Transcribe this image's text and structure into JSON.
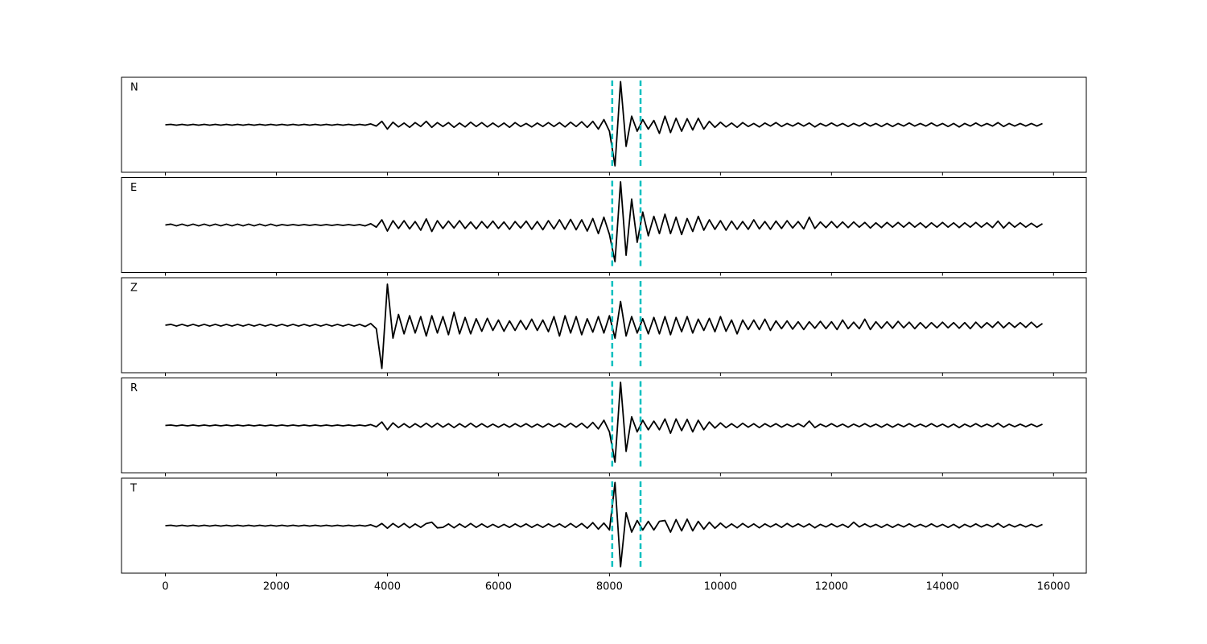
{
  "chart_data": {
    "type": "line",
    "subplots": true,
    "x": [
      0,
      100,
      200,
      300,
      400,
      500,
      600,
      700,
      800,
      900,
      1000,
      1100,
      1200,
      1300,
      1400,
      1500,
      1600,
      1700,
      1800,
      1900,
      2000,
      2100,
      2200,
      2300,
      2400,
      2500,
      2600,
      2700,
      2800,
      2900,
      3000,
      3100,
      3200,
      3300,
      3400,
      3500,
      3600,
      3700,
      3800,
      3900,
      4000,
      4100,
      4200,
      4300,
      4400,
      4500,
      4600,
      4700,
      4800,
      4900,
      5000,
      5100,
      5200,
      5300,
      5400,
      5500,
      5600,
      5700,
      5800,
      5900,
      6000,
      6100,
      6200,
      6300,
      6400,
      6500,
      6600,
      6700,
      6800,
      6900,
      7000,
      7100,
      7200,
      7300,
      7400,
      7500,
      7600,
      7700,
      7800,
      7900,
      8000,
      8100,
      8200,
      8300,
      8400,
      8500,
      8600,
      8700,
      8800,
      8900,
      9000,
      9100,
      9200,
      9300,
      9400,
      9500,
      9600,
      9700,
      9800,
      9900,
      10000,
      10100,
      10200,
      10300,
      10400,
      10500,
      10600,
      10700,
      10800,
      10900,
      11000,
      11100,
      11200,
      11300,
      11400,
      11500,
      11600,
      11700,
      11800,
      11900,
      12000,
      12100,
      12200,
      12300,
      12400,
      12500,
      12600,
      12700,
      12800,
      12900,
      13000,
      13100,
      13200,
      13300,
      13400,
      13500,
      13600,
      13700,
      13800,
      13900,
      14000,
      14100,
      14200,
      14300,
      14400,
      14500,
      14600,
      14700,
      14800,
      14900,
      15000,
      15100,
      15200,
      15300,
      15400,
      15500,
      15600,
      15700,
      15800
    ],
    "series": [
      {
        "name": "N",
        "color": "#000000",
        "values": [
          0,
          0.01,
          -0.01,
          0.01,
          -0.01,
          0.01,
          -0.01,
          0.01,
          -0.01,
          0.01,
          -0.01,
          0.01,
          -0.01,
          0.01,
          -0.01,
          0.01,
          -0.01,
          0.01,
          -0.01,
          0.01,
          -0.01,
          0.01,
          -0.01,
          0.01,
          -0.01,
          0.01,
          -0.01,
          0.01,
          -0.01,
          0.01,
          -0.01,
          0.01,
          -0.01,
          0.01,
          -0.01,
          0.01,
          -0.01,
          0.02,
          -0.03,
          0.08,
          -0.1,
          0.06,
          -0.05,
          0.04,
          -0.06,
          0.05,
          -0.04,
          0.08,
          -0.06,
          0.05,
          -0.04,
          0.05,
          -0.06,
          0.04,
          -0.05,
          0.06,
          -0.04,
          0.05,
          -0.05,
          0.04,
          -0.05,
          0.04,
          -0.06,
          0.05,
          -0.04,
          0.03,
          -0.05,
          0.04,
          -0.04,
          0.05,
          -0.04,
          0.05,
          -0.05,
          0.06,
          -0.04,
          0.07,
          -0.06,
          0.08,
          -0.1,
          0.12,
          -0.15,
          -0.95,
          1.0,
          -0.5,
          0.2,
          -0.15,
          0.12,
          -0.1,
          0.1,
          -0.2,
          0.2,
          -0.18,
          0.15,
          -0.15,
          0.14,
          -0.12,
          0.15,
          -0.1,
          0.08,
          -0.06,
          0.06,
          -0.05,
          0.04,
          -0.06,
          0.05,
          -0.04,
          0.03,
          -0.05,
          0.04,
          -0.03,
          0.05,
          -0.04,
          0.03,
          -0.03,
          0.04,
          -0.03,
          0.04,
          -0.05,
          0.03,
          -0.03,
          0.04,
          -0.03,
          0.03,
          -0.04,
          0.03,
          -0.03,
          0.04,
          -0.03,
          0.03,
          -0.04,
          0.03,
          -0.04,
          0.03,
          -0.03,
          0.04,
          -0.03,
          0.03,
          -0.03,
          0.04,
          -0.03,
          0.03,
          -0.04,
          0.03,
          -0.05,
          0.03,
          -0.03,
          0.04,
          -0.03,
          0.03,
          -0.03,
          0.05,
          -0.04,
          0.03,
          -0.03,
          0.03,
          -0.03,
          0.03,
          -0.03,
          0.03
        ]
      },
      {
        "name": "E",
        "color": "#000000",
        "values": [
          0,
          0.02,
          -0.02,
          0.02,
          -0.02,
          0.02,
          -0.02,
          0.02,
          -0.02,
          0.02,
          -0.02,
          0.02,
          -0.02,
          0.02,
          -0.02,
          0.02,
          -0.02,
          0.02,
          -0.02,
          0.02,
          -0.02,
          0.01,
          -0.01,
          0.01,
          -0.01,
          0.01,
          -0.01,
          0.01,
          -0.01,
          0.01,
          -0.01,
          0.01,
          -0.01,
          0.01,
          -0.01,
          0.01,
          -0.02,
          0.03,
          -0.05,
          0.12,
          -0.14,
          0.1,
          -0.08,
          0.1,
          -0.09,
          0.08,
          -0.12,
          0.14,
          -0.15,
          0.1,
          -0.08,
          0.09,
          -0.07,
          0.1,
          -0.08,
          0.07,
          -0.09,
          0.08,
          -0.07,
          0.09,
          -0.08,
          0.07,
          -0.1,
          0.08,
          -0.07,
          0.09,
          -0.1,
          0.08,
          -0.11,
          0.1,
          -0.09,
          0.12,
          -0.1,
          0.13,
          -0.11,
          0.12,
          -0.14,
          0.15,
          -0.2,
          0.18,
          -0.22,
          -0.85,
          1.0,
          -0.7,
          0.6,
          -0.4,
          0.3,
          -0.25,
          0.2,
          -0.2,
          0.25,
          -0.2,
          0.18,
          -0.22,
          0.15,
          -0.15,
          0.2,
          -0.12,
          0.12,
          -0.1,
          0.1,
          -0.12,
          0.09,
          -0.1,
          0.08,
          -0.1,
          0.12,
          -0.09,
          0.08,
          -0.1,
          0.09,
          -0.08,
          0.1,
          -0.07,
          0.08,
          -0.09,
          0.18,
          -0.08,
          0.07,
          -0.06,
          0.08,
          -0.06,
          0.07,
          -0.06,
          0.07,
          -0.05,
          0.06,
          -0.07,
          0.05,
          -0.06,
          0.06,
          -0.05,
          0.06,
          -0.05,
          0.06,
          -0.05,
          0.05,
          -0.06,
          0.05,
          -0.05,
          0.06,
          -0.05,
          0.05,
          -0.06,
          0.05,
          -0.05,
          0.06,
          -0.05,
          0.05,
          -0.06,
          0.09,
          -0.07,
          0.06,
          -0.05,
          0.05,
          -0.05,
          0.04,
          -0.05,
          0.03
        ]
      },
      {
        "name": "Z",
        "color": "#000000",
        "values": [
          0,
          0.02,
          -0.02,
          0.02,
          -0.02,
          0.02,
          -0.02,
          0.02,
          -0.02,
          0.02,
          -0.02,
          0.02,
          -0.02,
          0.02,
          -0.02,
          0.02,
          -0.02,
          0.02,
          -0.02,
          0.02,
          -0.02,
          0.02,
          -0.02,
          0.02,
          -0.02,
          0.02,
          -0.02,
          0.02,
          -0.02,
          0.02,
          -0.02,
          0.02,
          -0.02,
          0.02,
          -0.02,
          0.02,
          -0.03,
          0.04,
          -0.08,
          -1.0,
          0.95,
          -0.3,
          0.25,
          -0.2,
          0.22,
          -0.18,
          0.2,
          -0.25,
          0.22,
          -0.18,
          0.2,
          -0.22,
          0.3,
          -0.2,
          0.18,
          -0.2,
          0.15,
          -0.14,
          0.16,
          -0.12,
          0.12,
          -0.14,
          0.1,
          -0.12,
          0.11,
          -0.1,
          0.14,
          -0.12,
          0.12,
          -0.15,
          0.2,
          -0.25,
          0.22,
          -0.18,
          0.2,
          -0.22,
          0.15,
          -0.16,
          0.2,
          -0.18,
          0.22,
          -0.3,
          0.55,
          -0.25,
          0.2,
          -0.18,
          0.15,
          -0.2,
          0.18,
          -0.2,
          0.2,
          -0.22,
          0.18,
          -0.15,
          0.2,
          -0.18,
          0.14,
          -0.12,
          0.16,
          -0.15,
          0.2,
          -0.14,
          0.12,
          -0.2,
          0.12,
          -0.1,
          0.12,
          -0.1,
          0.14,
          -0.12,
          0.1,
          -0.08,
          0.1,
          -0.09,
          0.08,
          -0.1,
          0.08,
          -0.07,
          0.09,
          -0.08,
          0.08,
          -0.1,
          0.12,
          -0.08,
          0.07,
          -0.08,
          0.14,
          -0.1,
          0.08,
          -0.07,
          0.08,
          -0.07,
          0.09,
          -0.06,
          0.07,
          -0.08,
          0.06,
          -0.07,
          0.06,
          -0.06,
          0.07,
          -0.06,
          0.06,
          -0.07,
          0.06,
          -0.08,
          0.07,
          -0.06,
          0.06,
          -0.05,
          0.08,
          -0.06,
          0.06,
          -0.05,
          0.06,
          -0.05,
          0.07,
          -0.05,
          0.04
        ]
      },
      {
        "name": "R",
        "color": "#000000",
        "values": [
          0,
          0.01,
          -0.01,
          0.01,
          -0.01,
          0.01,
          -0.01,
          0.01,
          -0.01,
          0.01,
          -0.01,
          0.01,
          -0.01,
          0.01,
          -0.01,
          0.01,
          -0.01,
          0.01,
          -0.01,
          0.01,
          -0.01,
          0.01,
          -0.01,
          0.01,
          -0.01,
          0.01,
          -0.01,
          0.01,
          -0.01,
          0.01,
          -0.01,
          0.01,
          -0.01,
          0.01,
          -0.01,
          0.01,
          -0.01,
          0.02,
          -0.03,
          0.08,
          -0.1,
          0.06,
          -0.05,
          0.04,
          -0.05,
          0.04,
          -0.04,
          0.05,
          -0.04,
          0.05,
          -0.04,
          0.04,
          -0.05,
          0.04,
          -0.04,
          0.05,
          -0.04,
          0.04,
          -0.04,
          0.03,
          -0.04,
          0.03,
          -0.04,
          0.04,
          -0.03,
          0.04,
          -0.04,
          0.03,
          -0.04,
          0.04,
          -0.03,
          0.04,
          -0.04,
          0.05,
          -0.04,
          0.05,
          -0.06,
          0.07,
          -0.08,
          0.12,
          -0.15,
          -0.85,
          1.0,
          -0.6,
          0.2,
          -0.15,
          0.12,
          -0.1,
          0.1,
          -0.1,
          0.15,
          -0.18,
          0.15,
          -0.12,
          0.14,
          -0.15,
          0.12,
          -0.1,
          0.08,
          -0.06,
          0.06,
          -0.05,
          0.04,
          -0.05,
          0.05,
          -0.04,
          0.04,
          -0.05,
          0.04,
          -0.03,
          0.04,
          -0.04,
          0.03,
          -0.03,
          0.04,
          -0.03,
          0.1,
          -0.05,
          0.03,
          -0.03,
          0.04,
          -0.03,
          0.03,
          -0.04,
          0.03,
          -0.03,
          0.04,
          -0.03,
          0.03,
          -0.04,
          0.03,
          -0.04,
          0.03,
          -0.03,
          0.04,
          -0.03,
          0.03,
          -0.03,
          0.04,
          -0.03,
          0.03,
          -0.04,
          0.03,
          -0.05,
          0.03,
          -0.03,
          0.04,
          -0.03,
          0.03,
          -0.03,
          0.05,
          -0.04,
          0.03,
          -0.03,
          0.03,
          -0.03,
          0.03,
          -0.03,
          0.03
        ]
      },
      {
        "name": "T",
        "color": "#000000",
        "values": [
          0,
          0.01,
          -0.01,
          0.01,
          -0.01,
          0.01,
          -0.01,
          0.01,
          -0.01,
          0.01,
          -0.01,
          0.01,
          -0.01,
          0.01,
          -0.01,
          0.01,
          -0.01,
          0.01,
          -0.01,
          0.01,
          -0.01,
          0.01,
          -0.01,
          0.01,
          -0.01,
          0.01,
          -0.01,
          0.01,
          -0.01,
          0.01,
          -0.01,
          0.01,
          -0.01,
          0.01,
          -0.01,
          0.01,
          -0.01,
          0.02,
          -0.03,
          0.05,
          -0.06,
          0.05,
          -0.04,
          0.05,
          -0.05,
          0.04,
          -0.04,
          0.05,
          0.08,
          -0.05,
          -0.04,
          0.04,
          -0.05,
          0.04,
          -0.04,
          0.05,
          -0.04,
          0.04,
          -0.04,
          0.03,
          -0.04,
          0.03,
          -0.04,
          0.04,
          -0.03,
          0.04,
          -0.04,
          0.03,
          -0.04,
          0.04,
          -0.03,
          0.04,
          -0.04,
          0.05,
          -0.04,
          0.05,
          -0.06,
          0.07,
          -0.08,
          0.06,
          -0.1,
          1.0,
          -0.95,
          0.3,
          -0.15,
          0.12,
          -0.1,
          0.1,
          -0.1,
          0.1,
          0.12,
          -0.15,
          0.14,
          -0.12,
          0.15,
          -0.12,
          0.1,
          -0.08,
          0.08,
          -0.06,
          0.06,
          -0.05,
          0.04,
          -0.05,
          0.05,
          -0.04,
          0.04,
          -0.05,
          0.04,
          -0.03,
          0.04,
          -0.04,
          0.05,
          -0.03,
          0.04,
          -0.03,
          0.04,
          -0.05,
          0.03,
          -0.03,
          0.04,
          -0.03,
          0.03,
          -0.04,
          0.08,
          -0.03,
          0.04,
          -0.03,
          0.03,
          -0.04,
          0.03,
          -0.04,
          0.03,
          -0.03,
          0.04,
          -0.03,
          0.03,
          -0.03,
          0.04,
          -0.03,
          0.03,
          -0.04,
          0.03,
          -0.05,
          0.03,
          -0.03,
          0.04,
          -0.03,
          0.03,
          -0.03,
          0.05,
          -0.04,
          0.03,
          -0.03,
          0.03,
          -0.03,
          0.03,
          -0.03,
          0.03
        ]
      }
    ],
    "xlim": [
      -790,
      16590
    ],
    "xticks": [
      0,
      2000,
      4000,
      6000,
      8000,
      10000,
      12000,
      14000,
      16000
    ],
    "ylim": [
      -1.1,
      1.1
    ],
    "vlines": [
      8050,
      8560
    ],
    "vline_color": "#00bfbf"
  }
}
